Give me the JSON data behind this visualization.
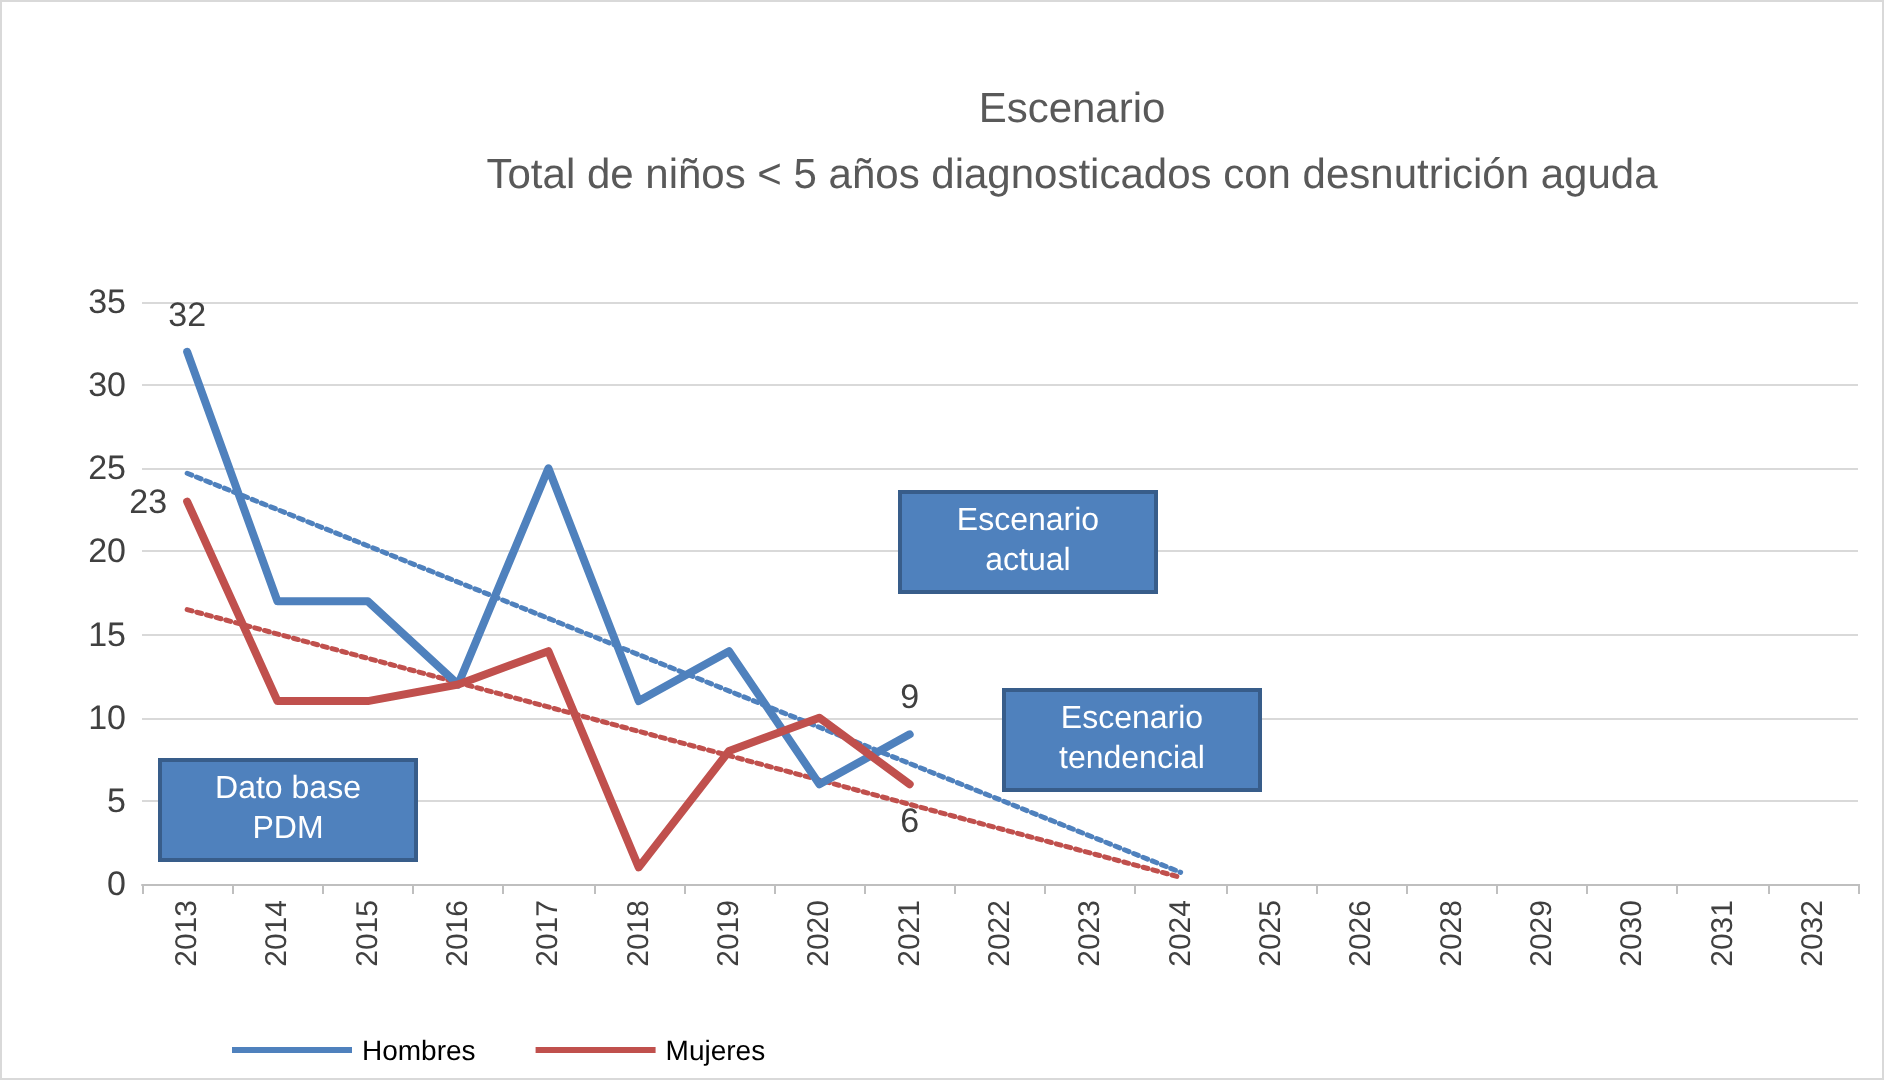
{
  "chart_data": {
    "type": "line",
    "title": "Escenario",
    "subtitle": "Total de niños < 5 años diagnosticados con desnutrición aguda",
    "categories": [
      "2013",
      "2014",
      "2015",
      "2016",
      "2017",
      "2018",
      "2019",
      "2020",
      "2021",
      "2022",
      "2023",
      "2024",
      "2025",
      "2026",
      "2028",
      "2029",
      "2030",
      "2031",
      "2032"
    ],
    "series": [
      {
        "name": "Hombres",
        "color": "#4f81bd",
        "values": [
          32,
          17,
          17,
          12,
          25,
          11,
          14,
          6,
          9,
          null,
          null,
          null,
          null,
          null,
          null,
          null,
          null,
          null,
          null
        ],
        "value_labels": [
          "32",
          null,
          null,
          null,
          null,
          null,
          null,
          null,
          "9",
          null,
          null,
          null,
          null,
          null,
          null,
          null,
          null,
          null,
          null
        ]
      },
      {
        "name": "Mujeres",
        "color": "#c0504d",
        "values": [
          23,
          11,
          11,
          12,
          14,
          1,
          8,
          10,
          6,
          null,
          null,
          null,
          null,
          null,
          null,
          null,
          null,
          null,
          null
        ],
        "value_labels": [
          "23",
          null,
          null,
          null,
          null,
          null,
          null,
          null,
          "6",
          null,
          null,
          null,
          null,
          null,
          null,
          null,
          null,
          null,
          null
        ]
      },
      {
        "type": "line",
        "color": "#4f81bd",
        "line_style": "dotted",
        "values": [
          24.7,
          null,
          null,
          null,
          null,
          null,
          null,
          null,
          null,
          null,
          null,
          0.7,
          null,
          null,
          null,
          null,
          null,
          null,
          null
        ]
      },
      {
        "type": "line",
        "color": "#c0504d",
        "line_style": "dotted",
        "values": [
          16.5,
          null,
          null,
          null,
          null,
          null,
          null,
          null,
          null,
          null,
          null,
          0.4,
          null,
          null,
          null,
          null,
          null,
          null,
          null
        ]
      }
    ],
    "ylim": [
      0,
      35
    ],
    "yticks": [
      0,
      5,
      10,
      15,
      20,
      25,
      30,
      35
    ],
    "grid": "y",
    "legend": "bottom left",
    "marker": "none",
    "line_style": "solid",
    "annotations": [
      "Dato base PDM",
      "Escenario actual",
      "Escenario tendencial"
    ]
  }
}
